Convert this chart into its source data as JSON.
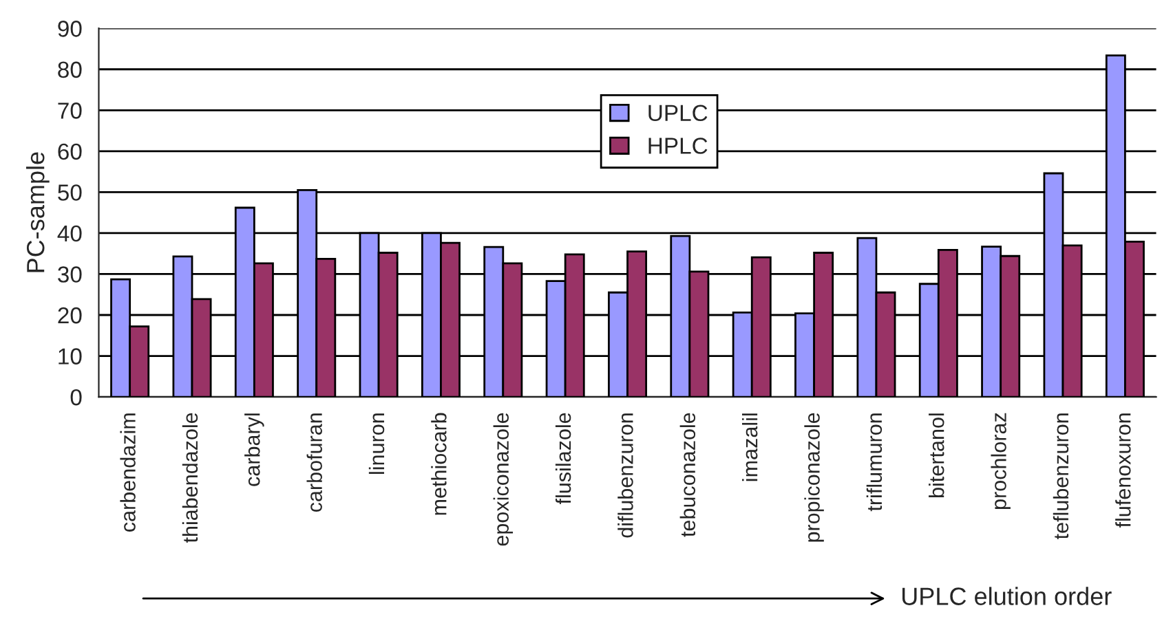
{
  "chart_data": {
    "type": "bar",
    "ylabel": "PC-sample",
    "categories": [
      "carbendazim",
      "thiabendazole",
      "carbaryl",
      "carbofuran",
      "linuron",
      "methiocarb",
      "epoxiconazole",
      "flusilazole",
      "diflubenzuron",
      "tebuconazole",
      "imazalil",
      "propiconazole",
      "triflumuron",
      "bitertanol",
      "prochloraz",
      "teflubenzuron",
      "flufenoxuron"
    ],
    "series": [
      {
        "name": "UPLC",
        "color": "#9999ff",
        "values": [
          28.7,
          34.3,
          46.2,
          50.5,
          40,
          40,
          36.6,
          28.3,
          25.5,
          39.3,
          20.6,
          20.4,
          38.8,
          27.6,
          36.7,
          54.6,
          83.4
        ]
      },
      {
        "name": "HPLC",
        "color": "#993366",
        "values": [
          17.2,
          23.9,
          32.6,
          33.7,
          35.2,
          37.6,
          32.6,
          34.8,
          35.5,
          30.6,
          34.1,
          35.2,
          25.5,
          35.9,
          34.4,
          37.0,
          37.9
        ]
      }
    ],
    "ylim": [
      0,
      90
    ],
    "yticks": [
      0,
      10,
      20,
      30,
      40,
      50,
      60,
      70,
      80,
      90
    ],
    "grid": "y",
    "legend": "top",
    "annotations": [
      "UPLC elution order"
    ]
  }
}
